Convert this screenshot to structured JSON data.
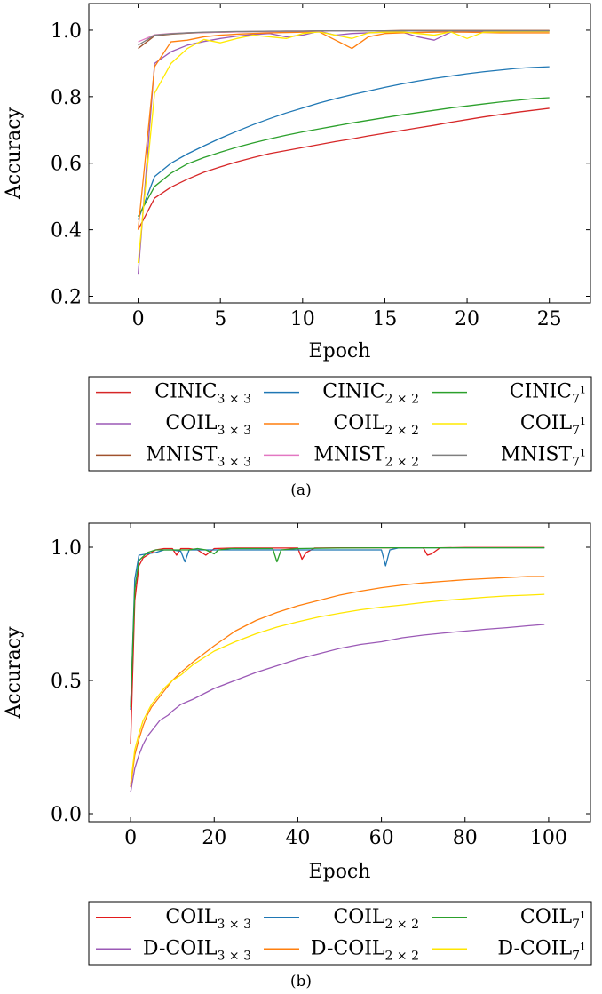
{
  "chart_data": [
    {
      "type": "line",
      "caption": "(a)",
      "xlabel": "Epoch",
      "ylabel": "Accuracy",
      "xlim": [
        -3,
        27.5
      ],
      "ylim": [
        0.18,
        1.08
      ],
      "xticks": [
        0,
        5,
        10,
        15,
        20,
        25
      ],
      "yticks": [
        0.2,
        0.4,
        0.6,
        0.8,
        1.0
      ],
      "ytick_labels": [
        "0.2",
        "0.4",
        "0.6",
        "0.8",
        "1.0"
      ],
      "legend_position": "below",
      "legend_columns": 3,
      "x": [
        0,
        1,
        2,
        3,
        4,
        5,
        6,
        7,
        8,
        9,
        10,
        11,
        12,
        13,
        14,
        15,
        16,
        17,
        18,
        19,
        20,
        21,
        22,
        23,
        24,
        25
      ],
      "series": [
        {
          "base": "CINIC",
          "sub": "3 × 3",
          "color": "#d62728",
          "values": [
            0.4,
            0.495,
            0.528,
            0.552,
            0.573,
            0.589,
            0.604,
            0.617,
            0.629,
            0.638,
            0.647,
            0.656,
            0.665,
            0.673,
            0.682,
            0.69,
            0.698,
            0.706,
            0.714,
            0.723,
            0.731,
            0.739,
            0.746,
            0.753,
            0.759,
            0.765
          ]
        },
        {
          "base": "CINIC",
          "sub": "2 × 2",
          "color": "#1f77b4",
          "values": [
            0.43,
            0.56,
            0.6,
            0.628,
            0.652,
            0.675,
            0.696,
            0.716,
            0.734,
            0.751,
            0.766,
            0.781,
            0.794,
            0.806,
            0.817,
            0.828,
            0.838,
            0.847,
            0.855,
            0.862,
            0.869,
            0.875,
            0.88,
            0.885,
            0.888,
            0.89
          ]
        },
        {
          "base": "CINIC",
          "sub": "7",
          "sup": "1",
          "color": "#2ca02c",
          "values": [
            0.44,
            0.53,
            0.57,
            0.598,
            0.617,
            0.633,
            0.648,
            0.661,
            0.673,
            0.684,
            0.694,
            0.703,
            0.712,
            0.721,
            0.729,
            0.737,
            0.745,
            0.752,
            0.759,
            0.766,
            0.772,
            0.778,
            0.784,
            0.789,
            0.794,
            0.797
          ]
        },
        {
          "base": "COIL",
          "sub": "3 × 3",
          "color": "#9b59b6",
          "values": [
            0.265,
            0.9,
            0.935,
            0.955,
            0.966,
            0.975,
            0.982,
            0.987,
            0.99,
            0.98,
            0.985,
            0.997,
            0.985,
            0.99,
            0.992,
            0.994,
            0.995,
            0.98,
            0.97,
            0.994,
            0.995,
            0.996,
            0.997,
            0.997,
            0.998,
            0.998
          ]
        },
        {
          "base": "COIL",
          "sub": "2 × 2",
          "color": "#ff7f0e",
          "values": [
            0.4,
            0.89,
            0.965,
            0.97,
            0.98,
            0.985,
            0.988,
            0.99,
            0.992,
            0.993,
            0.994,
            0.995,
            0.97,
            0.945,
            0.98,
            0.99,
            0.992,
            0.993,
            0.994,
            0.995,
            0.994,
            0.993,
            0.992,
            0.992,
            0.992,
            0.992
          ]
        },
        {
          "base": "COIL",
          "sub": "7",
          "sup": "1",
          "color": "#ffea00",
          "values": [
            0.3,
            0.81,
            0.9,
            0.945,
            0.972,
            0.962,
            0.975,
            0.985,
            0.98,
            0.975,
            0.99,
            0.995,
            0.985,
            0.975,
            0.992,
            0.994,
            0.995,
            0.99,
            0.985,
            0.995,
            0.975,
            0.994,
            0.995,
            0.996,
            0.996,
            0.996
          ]
        },
        {
          "base": "MNIST",
          "sub": "3 × 3",
          "color": "#a0522d",
          "values": [
            0.945,
            0.983,
            0.988,
            0.991,
            0.993,
            0.994,
            0.995,
            0.996,
            0.996,
            0.997,
            0.997,
            0.998,
            0.998,
            0.998,
            0.998,
            0.998,
            0.999,
            0.999,
            0.999,
            0.999,
            0.999,
            0.999,
            0.999,
            0.999,
            0.999,
            0.999
          ]
        },
        {
          "base": "MNIST",
          "sub": "2 × 2",
          "color": "#e377c2",
          "values": [
            0.965,
            0.986,
            0.99,
            0.992,
            0.993,
            0.994,
            0.995,
            0.996,
            0.996,
            0.997,
            0.997,
            0.997,
            0.998,
            0.998,
            0.998,
            0.998,
            0.998,
            0.998,
            0.998,
            0.998,
            0.998,
            0.998,
            0.998,
            0.998,
            0.998,
            0.998
          ]
        },
        {
          "base": "MNIST",
          "sub": "7",
          "sup": "1",
          "color": "#7f7f7f",
          "values": [
            0.955,
            0.985,
            0.989,
            0.992,
            0.994,
            0.995,
            0.996,
            0.996,
            0.997,
            0.997,
            0.997,
            0.998,
            0.998,
            0.998,
            0.998,
            0.998,
            0.998,
            0.998,
            0.998,
            0.998,
            0.998,
            0.998,
            0.998,
            0.998,
            0.998,
            0.998
          ]
        }
      ]
    },
    {
      "type": "line",
      "caption": "(b)",
      "xlabel": "Epoch",
      "ylabel": "Accuracy",
      "xlim": [
        -10,
        110
      ],
      "ylim": [
        -0.03,
        1.09
      ],
      "xticks": [
        0,
        20,
        40,
        60,
        80,
        100
      ],
      "yticks": [
        0.0,
        0.5,
        1.0
      ],
      "ytick_labels": [
        "0.0",
        "0.5",
        "1.0"
      ],
      "legend_position": "below",
      "legend_columns": 3,
      "series": [
        {
          "base": "COIL",
          "sub": "3 × 3",
          "color": "#e31a1c",
          "points": [
            [
              0,
              0.26
            ],
            [
              1,
              0.8
            ],
            [
              2,
              0.93
            ],
            [
              3,
              0.96
            ],
            [
              4,
              0.97
            ],
            [
              5,
              0.98
            ],
            [
              6,
              0.99
            ],
            [
              8,
              0.995
            ],
            [
              10,
              0.995
            ],
            [
              11,
              0.97
            ],
            [
              12,
              0.995
            ],
            [
              14,
              0.995
            ],
            [
              16,
              0.99
            ],
            [
              18,
              0.97
            ],
            [
              20,
              0.995
            ],
            [
              25,
              0.997
            ],
            [
              30,
              0.997
            ],
            [
              40,
              0.997
            ],
            [
              41,
              0.955
            ],
            [
              42,
              0.98
            ],
            [
              44,
              0.997
            ],
            [
              50,
              0.998
            ],
            [
              60,
              0.998
            ],
            [
              70,
              0.998
            ],
            [
              71,
              0.97
            ],
            [
              72,
              0.975
            ],
            [
              74,
              0.998
            ],
            [
              80,
              0.999
            ],
            [
              90,
              0.999
            ],
            [
              99,
              0.999
            ]
          ]
        },
        {
          "base": "COIL",
          "sub": "2 × 2",
          "color": "#1f77b4",
          "points": [
            [
              0,
              0.39
            ],
            [
              1,
              0.88
            ],
            [
              2,
              0.97
            ],
            [
              4,
              0.975
            ],
            [
              6,
              0.98
            ],
            [
              8,
              0.99
            ],
            [
              10,
              0.99
            ],
            [
              12,
              0.985
            ],
            [
              13,
              0.945
            ],
            [
              14,
              0.99
            ],
            [
              16,
              0.99
            ],
            [
              20,
              0.99
            ],
            [
              30,
              0.99
            ],
            [
              40,
              0.99
            ],
            [
              50,
              0.99
            ],
            [
              60,
              0.99
            ],
            [
              61,
              0.93
            ],
            [
              62,
              0.99
            ],
            [
              64,
              0.997
            ],
            [
              70,
              0.998
            ],
            [
              80,
              0.998
            ],
            [
              90,
              0.998
            ],
            [
              99,
              0.998
            ]
          ]
        },
        {
          "base": "COIL",
          "sub": "7",
          "sup": "1",
          "color": "#2ca02c",
          "points": [
            [
              0,
              0.4
            ],
            [
              1,
              0.84
            ],
            [
              2,
              0.95
            ],
            [
              4,
              0.98
            ],
            [
              6,
              0.99
            ],
            [
              8,
              0.99
            ],
            [
              10,
              0.99
            ],
            [
              12,
              0.99
            ],
            [
              14,
              0.99
            ],
            [
              16,
              0.995
            ],
            [
              18,
              0.99
            ],
            [
              20,
              0.975
            ],
            [
              21,
              0.99
            ],
            [
              24,
              0.995
            ],
            [
              30,
              0.995
            ],
            [
              34,
              0.995
            ],
            [
              35,
              0.945
            ],
            [
              36,
              0.99
            ],
            [
              40,
              0.995
            ],
            [
              50,
              0.997
            ],
            [
              60,
              0.998
            ],
            [
              70,
              0.998
            ],
            [
              80,
              0.998
            ],
            [
              90,
              0.998
            ],
            [
              99,
              0.998
            ]
          ]
        },
        {
          "base": "D-COIL",
          "sub": "3 × 3",
          "color": "#9b59b6",
          "points": [
            [
              0,
              0.08
            ],
            [
              1,
              0.17
            ],
            [
              2,
              0.22
            ],
            [
              3,
              0.26
            ],
            [
              4,
              0.29
            ],
            [
              5,
              0.31
            ],
            [
              6,
              0.33
            ],
            [
              7,
              0.35
            ],
            [
              8,
              0.36
            ],
            [
              9,
              0.37
            ],
            [
              10,
              0.385
            ],
            [
              12,
              0.41
            ],
            [
              15,
              0.43
            ],
            [
              20,
              0.47
            ],
            [
              25,
              0.5
            ],
            [
              30,
              0.53
            ],
            [
              35,
              0.555
            ],
            [
              40,
              0.58
            ],
            [
              45,
              0.6
            ],
            [
              50,
              0.62
            ],
            [
              55,
              0.635
            ],
            [
              60,
              0.645
            ],
            [
              65,
              0.66
            ],
            [
              70,
              0.67
            ],
            [
              75,
              0.678
            ],
            [
              80,
              0.685
            ],
            [
              85,
              0.692
            ],
            [
              90,
              0.698
            ],
            [
              95,
              0.705
            ],
            [
              99,
              0.71
            ]
          ]
        },
        {
          "base": "D-COIL",
          "sub": "2 × 2",
          "color": "#ff7f0e",
          "points": [
            [
              0,
              0.1
            ],
            [
              1,
              0.22
            ],
            [
              2,
              0.28
            ],
            [
              3,
              0.33
            ],
            [
              4,
              0.37
            ],
            [
              5,
              0.4
            ],
            [
              6,
              0.42
            ],
            [
              7,
              0.44
            ],
            [
              8,
              0.46
            ],
            [
              9,
              0.48
            ],
            [
              10,
              0.5
            ],
            [
              12,
              0.53
            ],
            [
              15,
              0.57
            ],
            [
              20,
              0.63
            ],
            [
              25,
              0.685
            ],
            [
              30,
              0.725
            ],
            [
              35,
              0.755
            ],
            [
              40,
              0.78
            ],
            [
              45,
              0.8
            ],
            [
              50,
              0.82
            ],
            [
              55,
              0.835
            ],
            [
              60,
              0.848
            ],
            [
              65,
              0.858
            ],
            [
              70,
              0.866
            ],
            [
              75,
              0.872
            ],
            [
              80,
              0.878
            ],
            [
              85,
              0.882
            ],
            [
              90,
              0.886
            ],
            [
              95,
              0.89
            ],
            [
              99,
              0.89
            ]
          ]
        },
        {
          "base": "D-COIL",
          "sub": "7",
          "sup": "1",
          "color": "#ffe600",
          "points": [
            [
              0,
              0.11
            ],
            [
              1,
              0.24
            ],
            [
              2,
              0.3
            ],
            [
              3,
              0.35
            ],
            [
              4,
              0.38
            ],
            [
              5,
              0.41
            ],
            [
              6,
              0.43
            ],
            [
              7,
              0.45
            ],
            [
              8,
              0.47
            ],
            [
              9,
              0.485
            ],
            [
              10,
              0.5
            ],
            [
              12,
              0.52
            ],
            [
              15,
              0.56
            ],
            [
              20,
              0.61
            ],
            [
              25,
              0.645
            ],
            [
              30,
              0.675
            ],
            [
              35,
              0.7
            ],
            [
              40,
              0.72
            ],
            [
              45,
              0.738
            ],
            [
              50,
              0.752
            ],
            [
              55,
              0.765
            ],
            [
              60,
              0.775
            ],
            [
              65,
              0.783
            ],
            [
              70,
              0.792
            ],
            [
              75,
              0.8
            ],
            [
              80,
              0.806
            ],
            [
              85,
              0.812
            ],
            [
              90,
              0.817
            ],
            [
              95,
              0.82
            ],
            [
              99,
              0.823
            ]
          ]
        }
      ]
    }
  ]
}
